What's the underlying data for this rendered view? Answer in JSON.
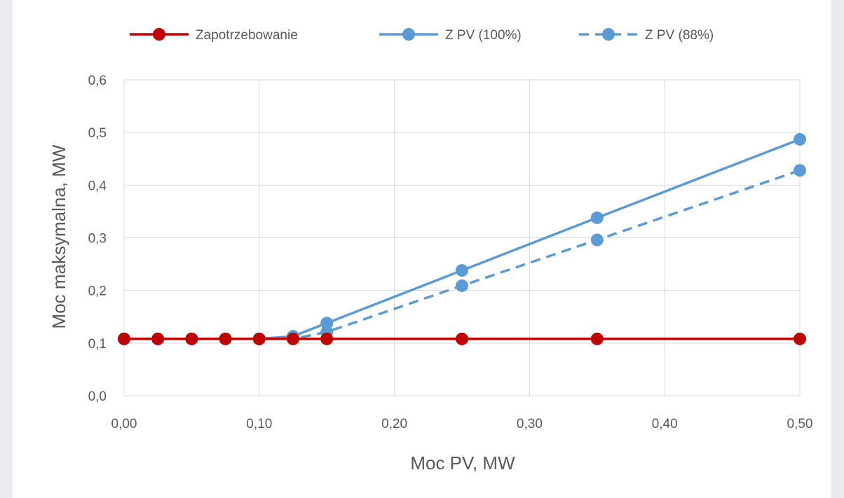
{
  "chart_data": {
    "type": "line",
    "xlabel": "Moc PV, MW",
    "ylabel": "Moc maksymalna, MW",
    "xlim": [
      0,
      0.5
    ],
    "ylim": [
      0,
      0.6
    ],
    "x_ticks": [
      "0,00",
      "0,10",
      "0,20",
      "0,30",
      "0,40",
      "0,50"
    ],
    "y_ticks": [
      "0,0",
      "0,1",
      "0,2",
      "0,3",
      "0,4",
      "0,5",
      "0,6"
    ],
    "grid": true,
    "legend_position": "top",
    "series": [
      {
        "name": "Zapotrzebowanie",
        "color": "#c00000",
        "dash": "solid",
        "x": [
          0,
          0.025,
          0.05,
          0.075,
          0.1,
          0.125,
          0.15,
          0.25,
          0.35,
          0.5
        ],
        "y": [
          0.108,
          0.108,
          0.108,
          0.108,
          0.108,
          0.108,
          0.108,
          0.108,
          0.108,
          0.108
        ]
      },
      {
        "name": "Z PV (100%)",
        "color": "#5b9bd5",
        "dash": "solid",
        "x": [
          0,
          0.025,
          0.05,
          0.075,
          0.1,
          0.125,
          0.15,
          0.25,
          0.35,
          0.5
        ],
        "y": [
          0.108,
          0.108,
          0.108,
          0.108,
          0.108,
          0.113,
          0.138,
          0.238,
          0.338,
          0.487
        ]
      },
      {
        "name": "Z PV (88%)",
        "color": "#5b9bd5",
        "dash": "dashed",
        "x": [
          0,
          0.025,
          0.05,
          0.075,
          0.1,
          0.125,
          0.15,
          0.25,
          0.35,
          0.5
        ],
        "y": [
          0.108,
          0.108,
          0.108,
          0.108,
          0.108,
          0.108,
          0.121,
          0.209,
          0.296,
          0.428
        ]
      }
    ]
  }
}
